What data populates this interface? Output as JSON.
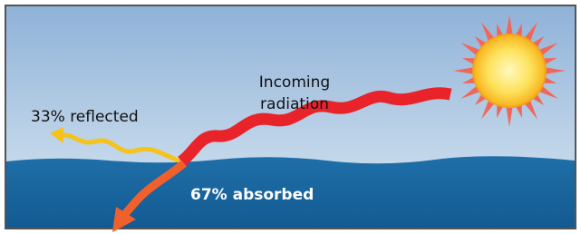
{
  "labels": {
    "incoming": [
      "Incoming",
      "radiation"
    ],
    "reflected": "33% reflected",
    "absorbed": "67% absorbed"
  }
}
